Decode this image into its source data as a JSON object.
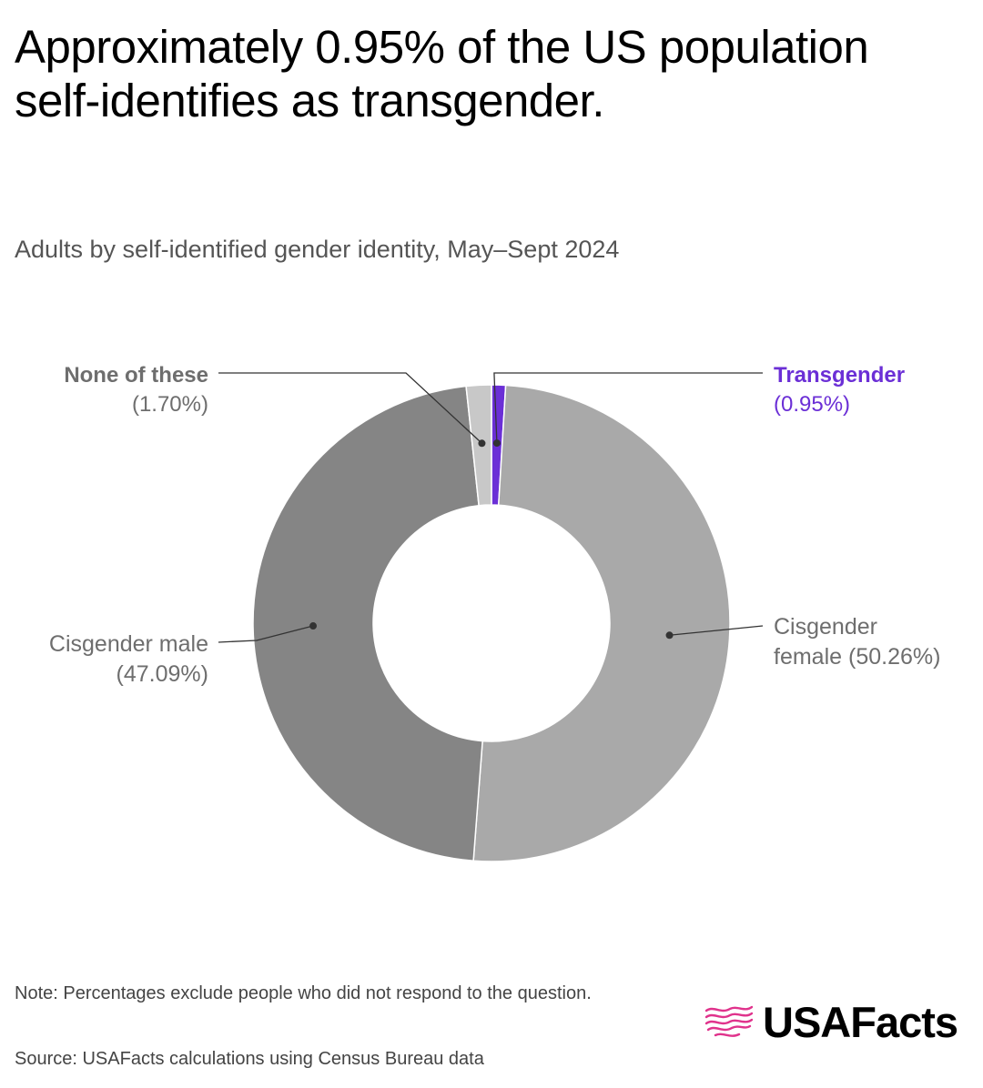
{
  "title": "Approximately 0.95% of the US population self-identifies as transgender.",
  "subtitle": "Adults by self-identified gender identity, May–Sept 2024",
  "note": "Note: Percentages exclude people who did not respond to the question.",
  "source": "Source: USAFacts calculations using Census Bureau data",
  "logo": {
    "text": "USAFacts",
    "icon": "usafacts-flag-map-icon",
    "accent": "#e0338c"
  },
  "chart_data": {
    "type": "pie",
    "subtype": "donut",
    "title": "Approximately 0.95% of the US population self-identifies as transgender.",
    "subtitle": "Adults by self-identified gender identity, May–Sept 2024",
    "categories": [
      "Transgender",
      "Cisgender female",
      "Cisgender male",
      "None of these"
    ],
    "values": [
      0.95,
      50.26,
      47.09,
      1.7
    ],
    "unit": "%",
    "colors": [
      "#6b2fd6",
      "#a9a9a9",
      "#858585",
      "#c8c8c8"
    ],
    "label_colors": [
      "#6b2fd6",
      "#6e6e6e",
      "#6e6e6e",
      "#6e6e6e"
    ],
    "labels": [
      {
        "name": "Transgender",
        "value_text": "(0.95%)",
        "side": "right"
      },
      {
        "name": "Cisgender female",
        "value_text": "(50.26%)",
        "side": "right"
      },
      {
        "name": "Cisgender male",
        "value_text": "(47.09%)",
        "side": "left"
      },
      {
        "name": "None of these",
        "value_text": "(1.70%)",
        "side": "left"
      }
    ]
  }
}
